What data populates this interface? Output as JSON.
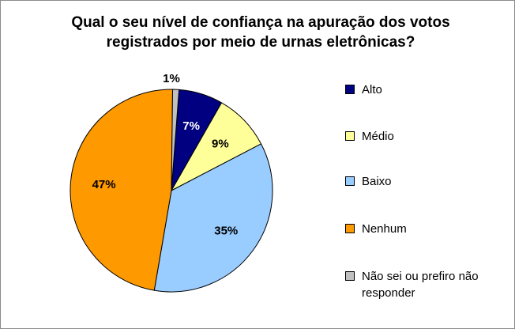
{
  "chart_data": {
    "type": "pie",
    "title": "Qual o seu nível de confiança na apuração dos votos registrados por meio de urnas eletrônicas?",
    "categories": [
      "Alto",
      "Médio",
      "Baixo",
      "Nenhum",
      "Não sei ou prefiro não responder"
    ],
    "values": [
      7,
      9,
      35,
      47,
      1
    ],
    "data_labels": [
      "7%",
      "9%",
      "35%",
      "47%",
      "1%"
    ],
    "colors": [
      "#000080",
      "#ffff99",
      "#99ccff",
      "#ff9900",
      "#c0c0c0"
    ],
    "label_colors": [
      "#ffffff",
      "#000000",
      "#000000",
      "#000000",
      "#000000"
    ],
    "legend_position": "right"
  }
}
